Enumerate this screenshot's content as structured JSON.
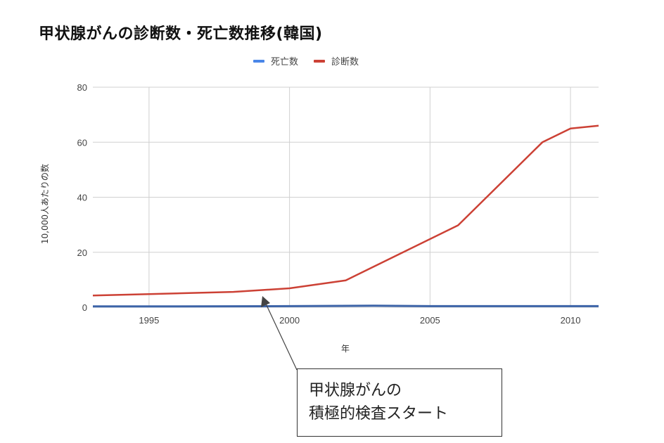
{
  "title": "甲状腺がんの診断数・死亡数推移(韓国)",
  "legend": [
    {
      "label": "死亡数",
      "color": "#4a86e8"
    },
    {
      "label": "診断数",
      "color": "#cc4135"
    }
  ],
  "axes": {
    "xlabel": "年",
    "ylabel": "10,000人あたりの数",
    "x_ticks": [
      "1995",
      "2000",
      "2005",
      "2010"
    ],
    "y_ticks": [
      "0",
      "20",
      "40",
      "60",
      "80"
    ]
  },
  "annotation": {
    "line1": "甲状腺がんの",
    "line2": "積極的検査スタート"
  },
  "chart_data": {
    "type": "line",
    "title": "甲状腺がんの診断数・死亡数推移(韓国)",
    "xlabel": "年",
    "ylabel": "10,000人あたりの数",
    "xlim": [
      1993,
      2011
    ],
    "ylim": [
      0,
      80
    ],
    "x_ticks": [
      1995,
      2000,
      2005,
      2010
    ],
    "y_ticks": [
      0,
      20,
      40,
      60,
      80
    ],
    "grid": true,
    "legend_position": "top",
    "series": [
      {
        "name": "死亡数",
        "color": "#4a86e8",
        "x": [
          1993,
          1995,
          2000,
          2003,
          2005,
          2010,
          2011
        ],
        "values": [
          0.3,
          0.3,
          0.4,
          0.6,
          0.4,
          0.4,
          0.4
        ]
      },
      {
        "name": "診断数",
        "color": "#cc4135",
        "x": [
          1993,
          1995,
          1998,
          2000,
          2002,
          2006,
          2009,
          2010,
          2011
        ],
        "values": [
          4.3,
          4.8,
          5.6,
          6.9,
          9.8,
          29.8,
          60.0,
          65.0,
          66.0
        ]
      }
    ],
    "annotations": [
      {
        "text": "甲状腺がんの積極的検査スタート",
        "points_to": {
          "x": 1999,
          "y": 3.5
        }
      }
    ]
  }
}
